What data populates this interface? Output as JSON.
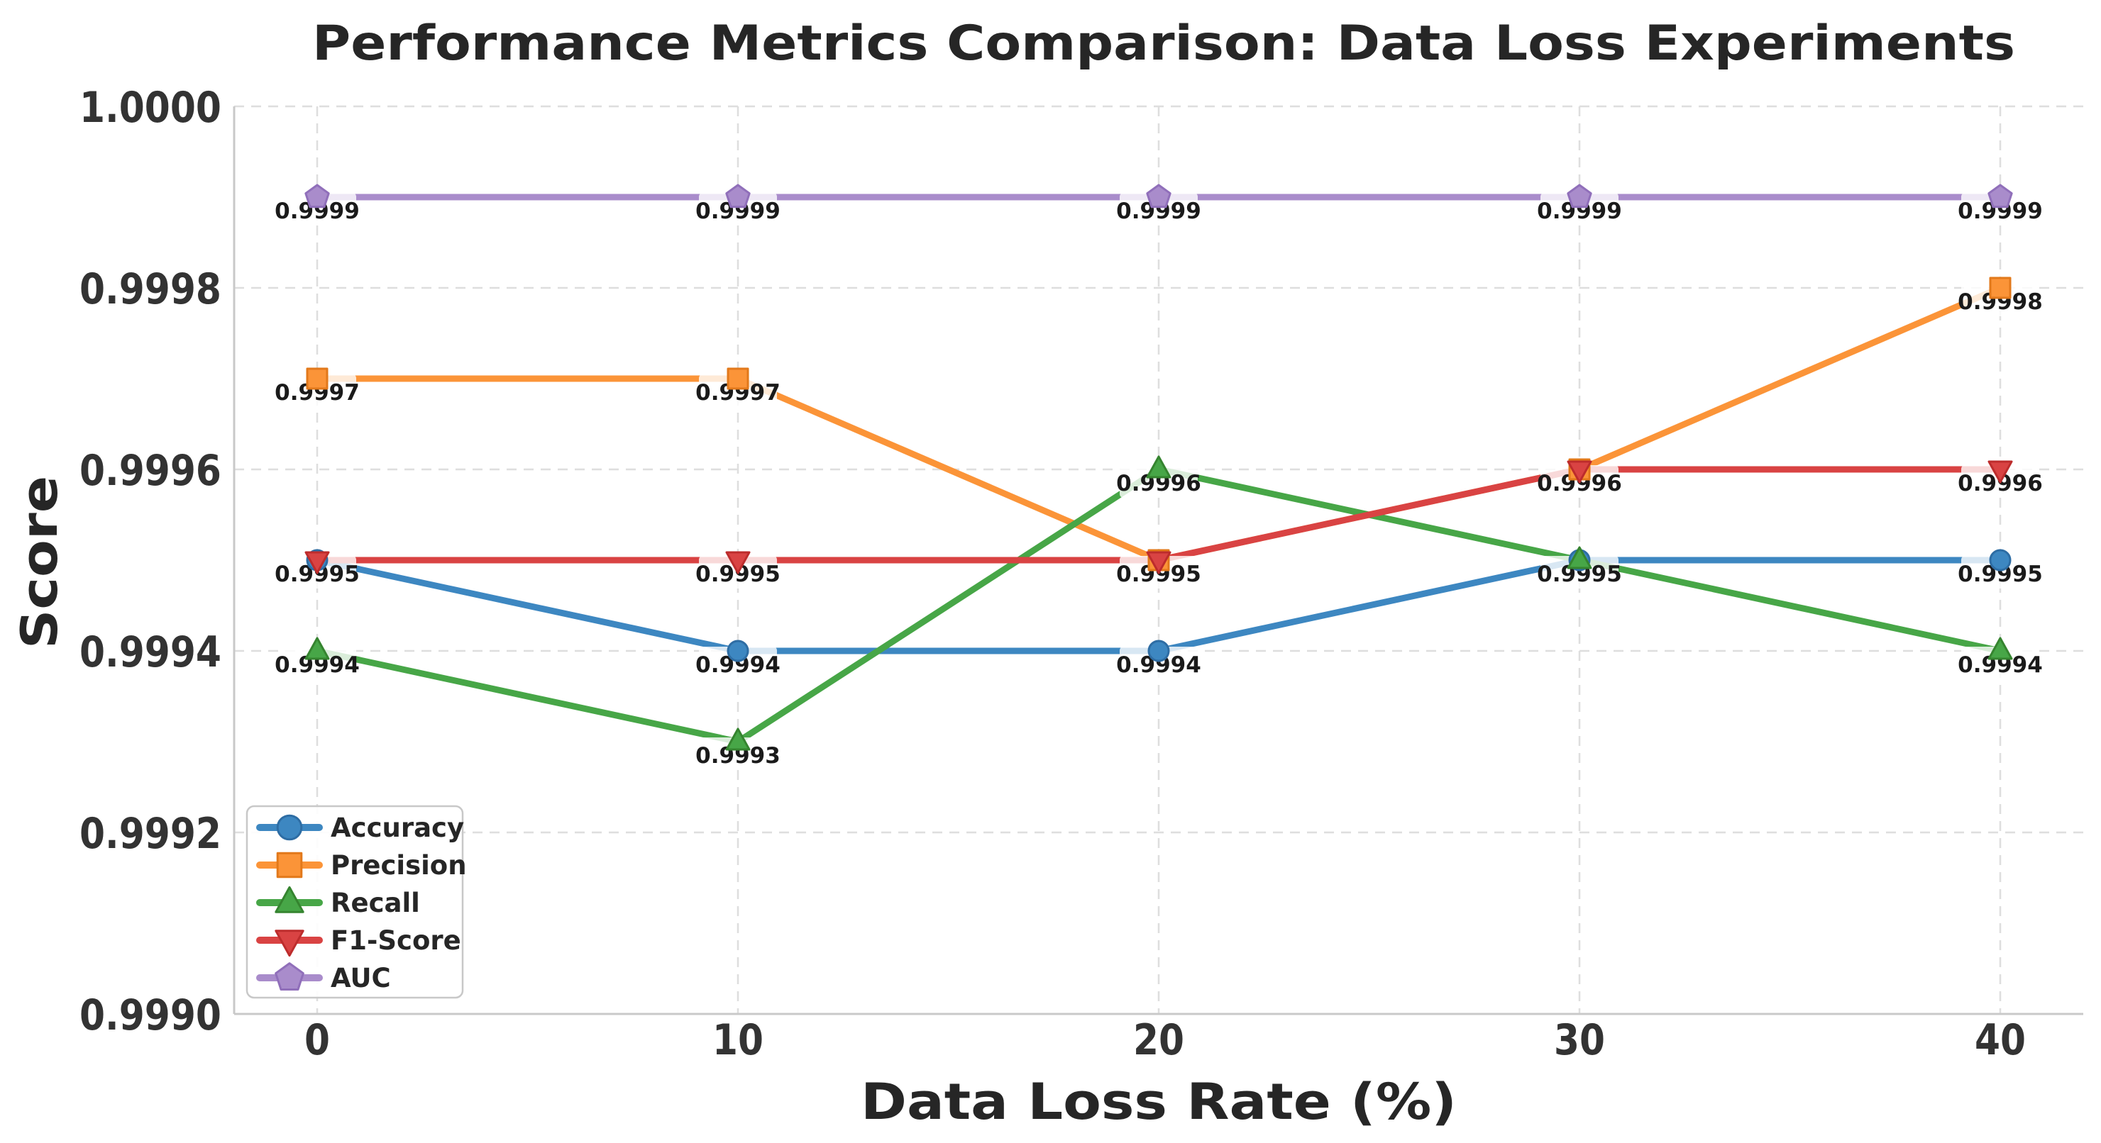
{
  "chart_data": {
    "type": "line",
    "title": "Performance Metrics Comparison: Data Loss Experiments",
    "xlabel": "Data Loss Rate (%)",
    "ylabel": "Score",
    "x": [
      0,
      10,
      20,
      30,
      40
    ],
    "x_tick_labels": [
      "0",
      "10",
      "20",
      "30",
      "40"
    ],
    "y_ticks": [
      0.999,
      0.9992,
      0.9994,
      0.9996,
      0.9998,
      1.0
    ],
    "y_tick_labels": [
      "0.9990",
      "0.9992",
      "0.9994",
      "0.9996",
      "0.9998",
      "1.0000"
    ],
    "ylim": [
      0.999,
      1.0
    ],
    "grid": true,
    "grid_style": "dashed",
    "legend_position": "lower left",
    "colors": {
      "accuracy": "#3d87c1",
      "precision": "#fb9438",
      "recall": "#47a647",
      "f1_score": "#d94343",
      "auc": "#a98ccb",
      "grid": "#dedede",
      "spine": "#c9c9c9",
      "text": "#262626",
      "point_label_text": "#1a1a1a",
      "point_label_box": "rgba(255,255,255,0.8)"
    },
    "series": [
      {
        "name": "Accuracy",
        "marker": "circle",
        "color": "#3d87c1",
        "edge": "#2e6da4",
        "values": [
          0.9995,
          0.9994,
          0.9994,
          0.9995,
          0.9995
        ],
        "point_labels": [
          "0.9995",
          "0.9994",
          "0.9994",
          "0.9995",
          "0.9995"
        ]
      },
      {
        "name": "Precision",
        "marker": "square",
        "color": "#fb9438",
        "edge": "#e2791b",
        "values": [
          0.9997,
          0.9997,
          0.9995,
          0.9996,
          0.9998
        ],
        "point_labels": [
          "0.9997",
          "0.9997",
          "0.9995",
          "0.9996",
          "0.9998"
        ]
      },
      {
        "name": "Recall",
        "marker": "triangle-up",
        "color": "#47a647",
        "edge": "#35842f",
        "values": [
          0.9994,
          0.9993,
          0.9996,
          0.9995,
          0.9994
        ],
        "point_labels": [
          "0.9994",
          "0.9993",
          "0.9996",
          "0.9995",
          "0.9994"
        ]
      },
      {
        "name": "F1-Score",
        "marker": "triangle-down",
        "color": "#d94343",
        "edge": "#bd2c2c",
        "values": [
          0.9995,
          0.9995,
          0.9995,
          0.9996,
          0.9996
        ],
        "point_labels": [
          "0.9995",
          "0.9995",
          "0.9995",
          "0.9996",
          "0.9996"
        ]
      },
      {
        "name": "AUC",
        "marker": "pentagon",
        "color": "#a98ccb",
        "edge": "#906fba",
        "values": [
          0.9999,
          0.9999,
          0.9999,
          0.9999,
          0.9999
        ],
        "point_labels": [
          "0.9999",
          "0.9999",
          "0.9999",
          "0.9999",
          "0.9999"
        ]
      }
    ]
  }
}
